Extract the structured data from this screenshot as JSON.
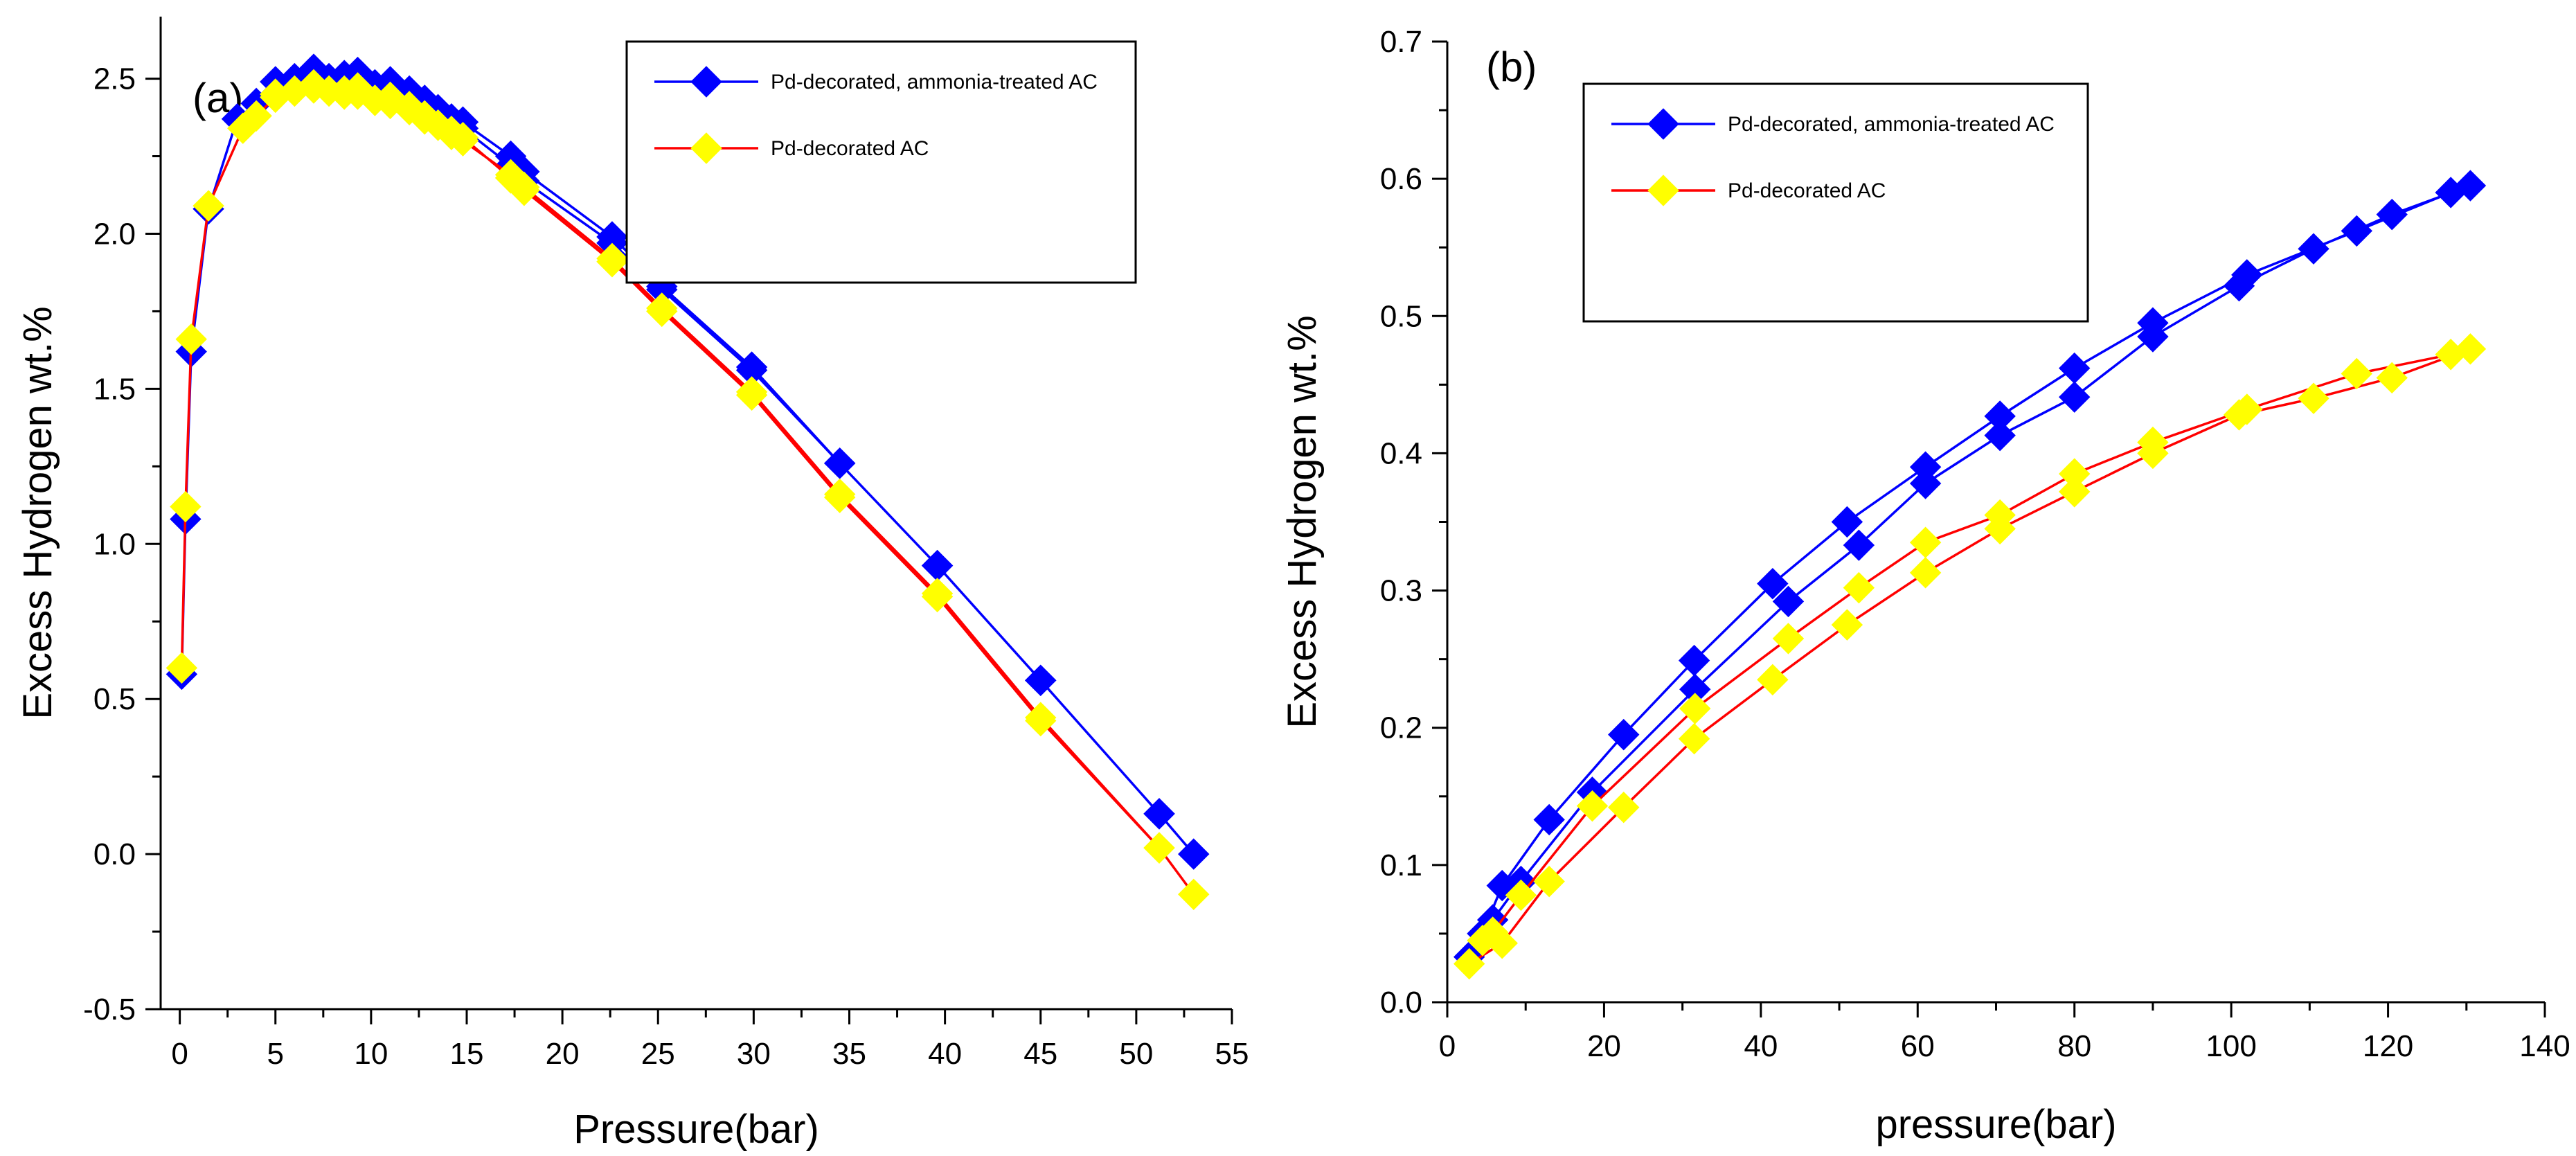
{
  "chart_data": [
    {
      "panel": "(a)",
      "type": "line",
      "xlabel": "Pressure(bar)",
      "ylabel": "Excess Hydrogen wt.%",
      "xlim": [
        -1,
        55
      ],
      "ylim": [
        -0.5,
        2.7
      ],
      "xticks": [
        0,
        5,
        10,
        15,
        20,
        25,
        30,
        35,
        40,
        45,
        50,
        55
      ],
      "yticks": [
        -0.5,
        0.0,
        0.5,
        1.0,
        1.5,
        2.0,
        2.5
      ],
      "ytick_labels": [
        "-0.5",
        "0.0",
        "0.5",
        "1.0",
        "1.5",
        "2.0",
        "2.5"
      ],
      "legend": {
        "position": "top-right"
      },
      "series": [
        {
          "name": "Pd-decorated, ammonia-treated AC",
          "color": "#0000ff",
          "marker_color": "#0000ff",
          "x": [
            0.1,
            0.3,
            0.6,
            1.5,
            3.0,
            4.0,
            5.0,
            6.0,
            7.0,
            7.8,
            8.6,
            9.3,
            10.2,
            11.0,
            12.0,
            12.8,
            13.5,
            14.2,
            14.8,
            17.3,
            18.0,
            22.6,
            25.2,
            29.9,
            34.5,
            39.6,
            45.0,
            51.2,
            53.0,
            51.2,
            45.0,
            39.6,
            34.5,
            29.9,
            25.2,
            22.6,
            18.0,
            17.3,
            14.8,
            14.2,
            13.5,
            12.8,
            12.0,
            11.0,
            10.2,
            9.3,
            8.6,
            7.8,
            7.0,
            6.0,
            5.0
          ],
          "y": [
            0.58,
            1.08,
            1.62,
            2.08,
            2.37,
            2.42,
            2.49,
            2.5,
            2.53,
            2.5,
            2.51,
            2.52,
            2.48,
            2.49,
            2.46,
            2.43,
            2.4,
            2.37,
            2.36,
            2.25,
            2.2,
            1.99,
            1.83,
            1.57,
            1.26,
            0.93,
            0.56,
            0.13,
            0.0,
            0.13,
            0.56,
            0.93,
            1.26,
            1.56,
            1.82,
            1.97,
            2.17,
            2.22,
            2.34,
            2.36,
            2.39,
            2.42,
            2.45,
            2.46,
            2.47,
            2.49,
            2.49,
            2.5,
            2.5,
            2.48,
            2.45
          ]
        },
        {
          "name": "Pd-decorated AC",
          "color": "#ff0000",
          "marker_color": "#ffff00",
          "x": [
            0.1,
            0.3,
            0.6,
            1.5,
            3.3,
            4.0,
            5.0,
            6.0,
            7.0,
            7.8,
            8.6,
            9.3,
            10.2,
            11.0,
            12.0,
            12.8,
            13.5,
            14.2,
            14.8,
            17.3,
            18.0,
            22.6,
            25.2,
            29.9,
            34.5,
            39.6,
            45.0,
            51.2,
            53.0,
            51.2,
            45.0,
            39.6,
            34.5,
            29.9,
            25.2,
            22.6,
            18.0,
            17.3,
            14.8,
            14.2,
            13.5,
            12.8,
            12.0,
            11.0,
            10.2,
            9.3,
            8.6,
            7.8,
            7.0,
            6.0,
            5.0
          ],
          "y": [
            0.6,
            1.12,
            1.66,
            2.09,
            2.34,
            2.38,
            2.44,
            2.46,
            2.48,
            2.46,
            2.46,
            2.47,
            2.43,
            2.44,
            2.41,
            2.38,
            2.35,
            2.33,
            2.31,
            2.18,
            2.14,
            1.91,
            1.75,
            1.48,
            1.15,
            0.83,
            0.43,
            0.02,
            -0.13,
            0.02,
            0.44,
            0.84,
            1.16,
            1.49,
            1.76,
            1.92,
            2.15,
            2.19,
            2.3,
            2.32,
            2.35,
            2.37,
            2.4,
            2.42,
            2.43,
            2.45,
            2.45,
            2.46,
            2.47,
            2.46,
            2.45
          ]
        }
      ]
    },
    {
      "panel": "(b)",
      "type": "line",
      "xlabel": "pressure(bar)",
      "ylabel": "Excess Hydrogen wt.%",
      "xlim": [
        0,
        140
      ],
      "ylim": [
        0.0,
        0.7
      ],
      "xticks": [
        0,
        20,
        40,
        60,
        80,
        100,
        120,
        140
      ],
      "yticks": [
        0.0,
        0.1,
        0.2,
        0.3,
        0.4,
        0.5,
        0.6,
        0.7
      ],
      "ytick_labels": [
        "0.0",
        "0.1",
        "0.2",
        "0.3",
        "0.4",
        "0.5",
        "0.6",
        "0.7"
      ],
      "legend": {
        "position": "top-center"
      },
      "series": [
        {
          "name": "Pd-decorated, ammonia-treated AC",
          "color": "#0000ff",
          "marker_color": "#0000ff",
          "x": [
            2.8,
            5.8,
            9.4,
            18.5,
            31.6,
            43.5,
            52.5,
            61.0,
            70.5,
            80.0,
            90.0,
            101.0,
            110.5,
            120.5,
            130.5,
            128.0,
            116.0,
            102.0,
            90.0,
            80.0,
            70.5,
            61.0,
            51.0,
            41.5,
            31.5,
            22.5,
            13.0,
            7.0,
            4.5
          ],
          "y": [
            0.033,
            0.06,
            0.088,
            0.153,
            0.228,
            0.292,
            0.333,
            0.378,
            0.413,
            0.441,
            0.485,
            0.522,
            0.549,
            0.574,
            0.595,
            0.59,
            0.562,
            0.53,
            0.495,
            0.462,
            0.427,
            0.39,
            0.35,
            0.305,
            0.249,
            0.195,
            0.133,
            0.085,
            0.05
          ]
        },
        {
          "name": "Pd-decorated AC",
          "color": "#ff0000",
          "marker_color": "#ffff00",
          "x": [
            2.8,
            7.0,
            13.0,
            22.5,
            31.5,
            41.5,
            51.0,
            61.0,
            70.5,
            80.0,
            90.0,
            101.0,
            110.5,
            120.5,
            130.5,
            128.0,
            116.0,
            102.0,
            90.0,
            80.0,
            70.5,
            61.0,
            52.5,
            43.5,
            31.6,
            18.5,
            9.4,
            5.8,
            4.5
          ],
          "y": [
            0.028,
            0.043,
            0.088,
            0.142,
            0.192,
            0.235,
            0.275,
            0.313,
            0.345,
            0.372,
            0.4,
            0.428,
            0.44,
            0.455,
            0.476,
            0.472,
            0.458,
            0.432,
            0.408,
            0.385,
            0.355,
            0.335,
            0.302,
            0.265,
            0.214,
            0.143,
            0.078,
            0.051,
            0.045
          ]
        }
      ]
    }
  ]
}
